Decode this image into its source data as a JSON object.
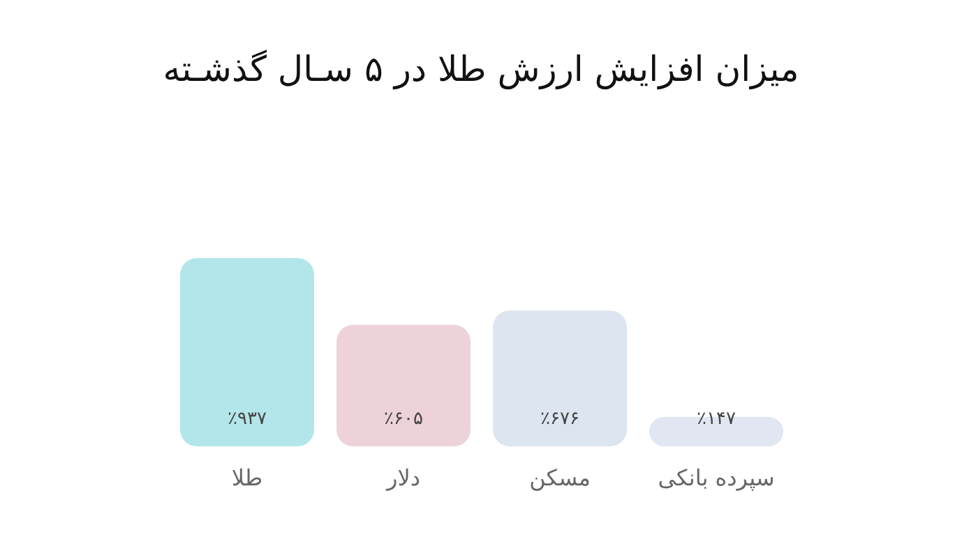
{
  "chart_data": {
    "type": "bar",
    "title": "میزان افزایش ارزش طلا در ۵ سـال گذشـته",
    "categories": [
      "طلا",
      "دلار",
      "مسکن",
      "سپرده بانکی"
    ],
    "values": [
      937,
      605,
      676,
      147
    ],
    "colors": [
      "#b3e6ea",
      "#edd3d9",
      "#dde5f0",
      "#e1e6f2"
    ],
    "value_labels": [
      "٪۹۳۷",
      "٪۶۰۵",
      "٪۶۷۶",
      "٪۱۴۷"
    ]
  }
}
